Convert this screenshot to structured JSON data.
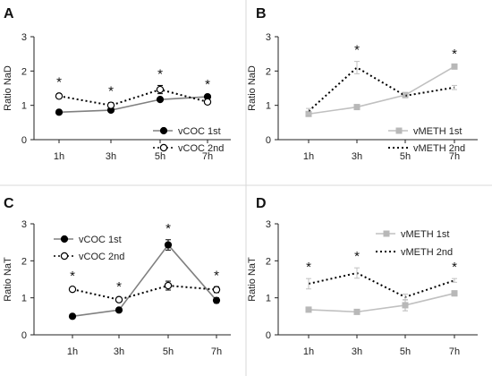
{
  "chart_data": [
    {
      "panel_label": "A",
      "type": "line",
      "categories": [
        "1h",
        "3h",
        "5h",
        "7h"
      ],
      "ylabel": "Ratio NaD",
      "ylim": [
        0,
        3
      ],
      "yticks": [
        0,
        1,
        2,
        3
      ],
      "legend_position": "bottom-right",
      "series": [
        {
          "name": "vCOC 1st",
          "style": "solid",
          "marker": "filled-circle",
          "color": "#808080",
          "marker_color": "#000000",
          "values": [
            0.8,
            0.86,
            1.17,
            1.25
          ],
          "errors": [
            0.03,
            0.03,
            0.04,
            0.03
          ]
        },
        {
          "name": "vCOC 2nd",
          "style": "dotted",
          "marker": "open-circle",
          "color": "#000000",
          "marker_color": "#000000",
          "values": [
            1.27,
            1.0,
            1.46,
            1.1
          ],
          "errors": [
            0.07,
            0.08,
            0.12,
            0.07
          ]
        }
      ],
      "significance": [
        "*",
        "*",
        "*",
        "*"
      ]
    },
    {
      "panel_label": "B",
      "type": "line",
      "categories": [
        "1h",
        "3h",
        "5h",
        "7h"
      ],
      "ylabel": "Ratio NaD",
      "ylim": [
        0,
        3
      ],
      "yticks": [
        0,
        1,
        2,
        3
      ],
      "legend_position": "bottom-right",
      "series": [
        {
          "name": "vMETH 1st",
          "style": "solid",
          "marker": "square",
          "color": "#c0c0c0",
          "marker_color": "#b8b8b8",
          "values": [
            0.75,
            0.95,
            1.3,
            2.13
          ],
          "errors": [
            0.04,
            0.03,
            0.04,
            0.04
          ]
        },
        {
          "name": "vMETH 2nd",
          "style": "dotted",
          "marker": "none",
          "color": "#000000",
          "marker_color": "#c0c0c0",
          "values": [
            0.83,
            2.1,
            1.28,
            1.52
          ],
          "errors": [
            0.08,
            0.18,
            0.06,
            0.06
          ]
        }
      ],
      "significance": [
        "",
        "*",
        "",
        "*"
      ]
    },
    {
      "panel_label": "C",
      "type": "line",
      "categories": [
        "1h",
        "3h",
        "5h",
        "7h"
      ],
      "ylabel": "Ratio NaT",
      "ylim": [
        0,
        3
      ],
      "yticks": [
        0,
        1,
        2,
        3
      ],
      "legend_position": "top-left",
      "series": [
        {
          "name": "vCOC 1st",
          "style": "solid",
          "marker": "filled-circle",
          "color": "#808080",
          "marker_color": "#000000",
          "values": [
            0.5,
            0.67,
            2.43,
            0.93
          ],
          "errors": [
            0.02,
            0.03,
            0.14,
            0.07
          ]
        },
        {
          "name": "vCOC 2nd",
          "style": "dotted",
          "marker": "open-circle",
          "color": "#000000",
          "marker_color": "#000000",
          "values": [
            1.23,
            0.95,
            1.33,
            1.22
          ],
          "errors": [
            0.05,
            0.04,
            0.12,
            0.08
          ]
        }
      ],
      "significance": [
        "*",
        "*",
        "*",
        "*"
      ]
    },
    {
      "panel_label": "D",
      "type": "line",
      "categories": [
        "1h",
        "3h",
        "5h",
        "7h"
      ],
      "ylabel": "Ratio NaT",
      "ylim": [
        0,
        3
      ],
      "yticks": [
        0,
        1,
        2,
        3
      ],
      "legend_position": "top-right",
      "series": [
        {
          "name": "vMETH 1st",
          "style": "solid",
          "marker": "square",
          "color": "#c0c0c0",
          "marker_color": "#b8b8b8",
          "values": [
            0.68,
            0.62,
            0.8,
            1.12
          ],
          "errors": [
            0.04,
            0.04,
            0.15,
            0.07
          ]
        },
        {
          "name": "vMETH 2nd",
          "style": "dotted",
          "marker": "none",
          "color": "#000000",
          "marker_color": "#c0c0c0",
          "values": [
            1.38,
            1.67,
            1.02,
            1.47
          ],
          "errors": [
            0.14,
            0.14,
            0.08,
            0.05
          ]
        }
      ],
      "significance": [
        "*",
        "*",
        "",
        "*"
      ]
    }
  ]
}
